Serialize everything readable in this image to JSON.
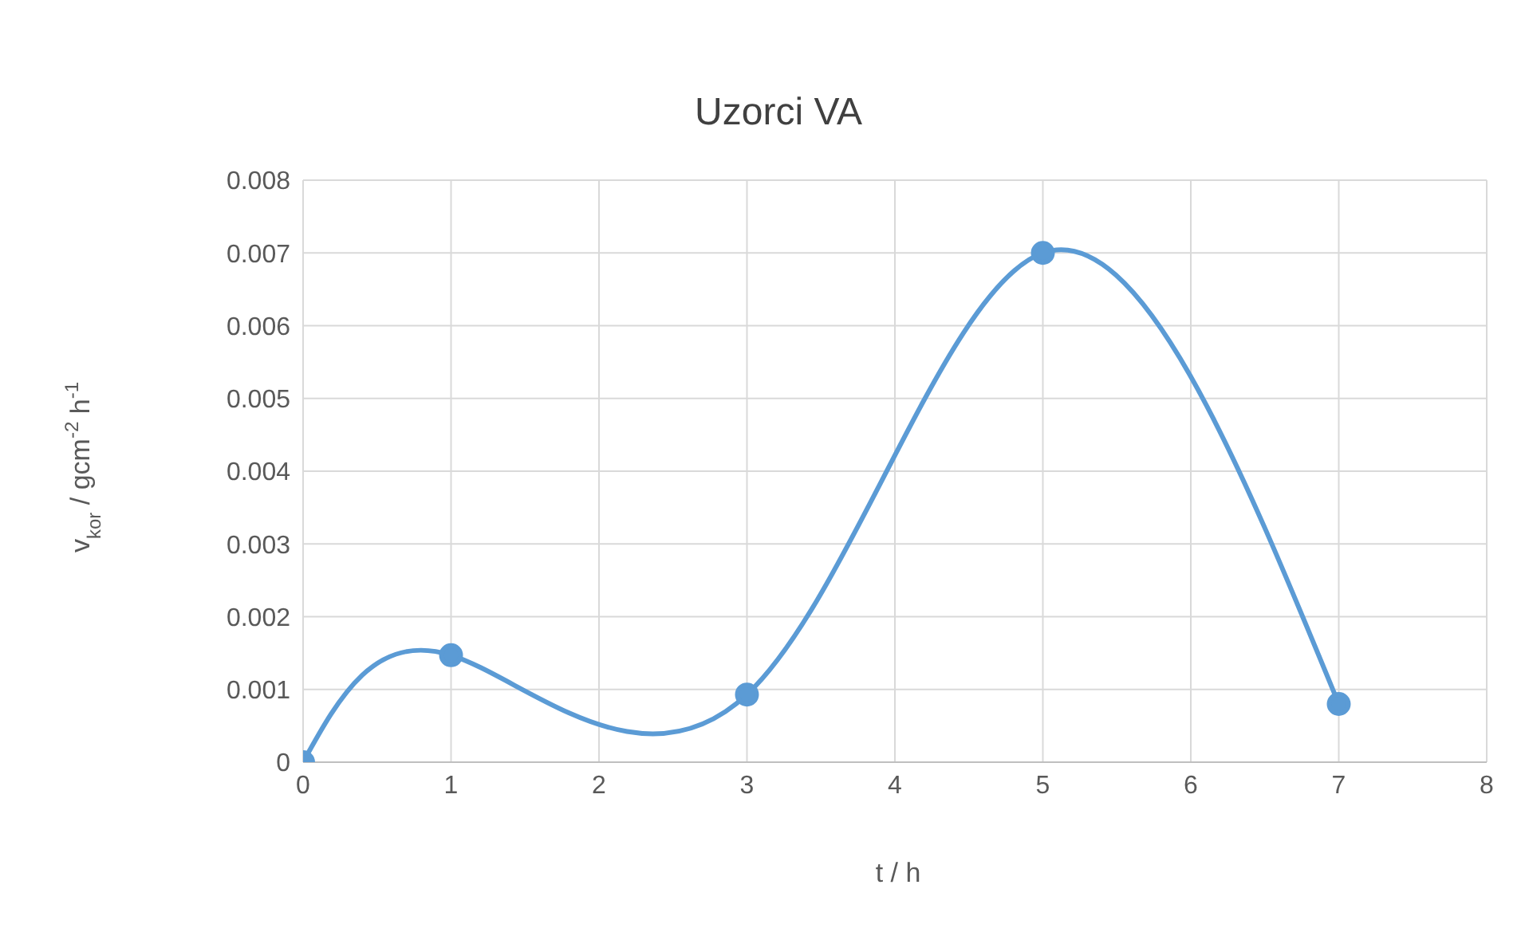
{
  "chart_data": {
    "type": "line",
    "title": "Uzorci VA",
    "xlabel": "t / h",
    "ylabel": "v$_{kor}$ / gcm$^{-2}$ h$^{-1}$",
    "x": [
      0,
      1,
      3,
      5,
      7
    ],
    "series": [
      {
        "color": "#5b9bd5",
        "values": [
          0,
          0.00147,
          0.00093,
          0.007,
          0.0008
        ]
      }
    ],
    "xlim": [
      0,
      8
    ],
    "xticks": [
      0,
      1,
      2,
      3,
      4,
      5,
      6,
      7,
      8
    ],
    "ylim": [
      0,
      0.008
    ],
    "yticks": [
      0,
      0.001,
      0.002,
      0.003,
      0.004,
      0.005,
      0.006,
      0.007,
      0.008
    ],
    "grid": true,
    "marker": "circle",
    "line_style": "solid",
    "legend": false
  }
}
